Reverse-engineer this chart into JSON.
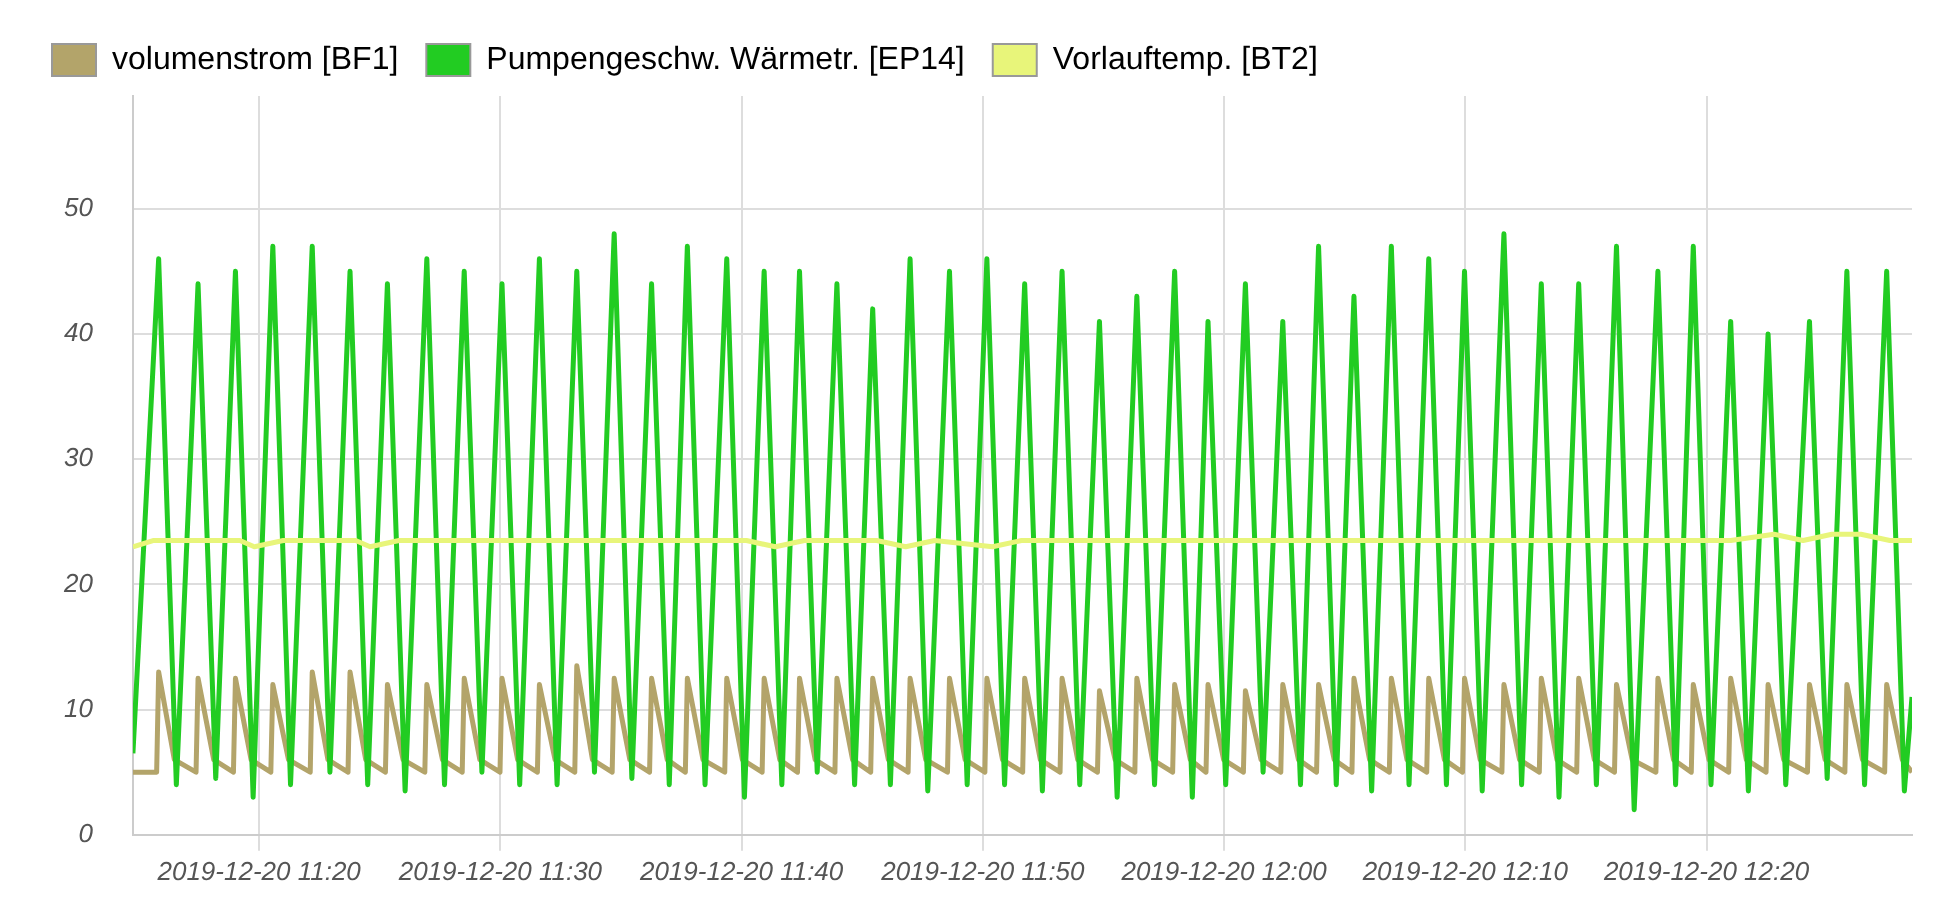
{
  "chart_data": {
    "type": "line",
    "xlim": [
      "2019-12-20T11:14:46",
      "2019-12-20T12:28:31"
    ],
    "xticks": [
      {
        "value": "2019-12-20T11:20",
        "label": "2019-12-20 11:20"
      },
      {
        "value": "2019-12-20T11:30",
        "label": "2019-12-20 11:30"
      },
      {
        "value": "2019-12-20T11:40",
        "label": "2019-12-20 11:40"
      },
      {
        "value": "2019-12-20T11:50",
        "label": "2019-12-20 11:50"
      },
      {
        "value": "2019-12-20T12:00",
        "label": "2019-12-20 12:00"
      },
      {
        "value": "2019-12-20T12:10",
        "label": "2019-12-20 12:10"
      },
      {
        "value": "2019-12-20T12:20",
        "label": "2019-12-20 12:20"
      }
    ],
    "ylim": [
      0,
      59
    ],
    "yticks": [
      0,
      10,
      20,
      30,
      40,
      50
    ],
    "grid": true,
    "legend": "top left",
    "marker": "none",
    "line_style": "solid",
    "series": [
      {
        "name": "volumenstrom [BF1]",
        "color": "#b3a46a",
        "x": [
          "2019-12-20T11:14:46",
          "2019-12-20T11:15:45",
          "2019-12-20T11:15:50",
          "2019-12-20T11:16:29",
          "2019-12-20T11:17:23",
          "2019-12-20T11:17:28",
          "2019-12-20T11:18:07",
          "2019-12-20T11:18:56",
          "2019-12-20T11:19:01",
          "2019-12-20T11:19:40",
          "2019-12-20T11:20:29",
          "2019-12-20T11:20:34",
          "2019-12-20T11:21:13",
          "2019-12-20T11:22:07",
          "2019-12-20T11:22:12",
          "2019-12-20T11:22:51",
          "2019-12-20T11:23:41",
          "2019-12-20T11:23:46",
          "2019-12-20T11:24:25",
          "2019-12-20T11:25:14",
          "2019-12-20T11:25:19",
          "2019-12-20T11:25:58",
          "2019-12-20T11:26:52",
          "2019-12-20T11:26:57",
          "2019-12-20T11:27:36",
          "2019-12-20T11:28:25",
          "2019-12-20T11:28:30",
          "2019-12-20T11:29:09",
          "2019-12-20T11:29:59",
          "2019-12-20T11:30:04",
          "2019-12-20T11:30:43",
          "2019-12-20T11:31:32",
          "2019-12-20T11:31:37",
          "2019-12-20T11:32:16",
          "2019-12-20T11:33:05",
          "2019-12-20T11:33:10",
          "2019-12-20T11:33:49",
          "2019-12-20T11:34:38",
          "2019-12-20T11:34:43",
          "2019-12-20T11:35:22",
          "2019-12-20T11:36:11",
          "2019-12-20T11:36:16",
          "2019-12-20T11:36:55",
          "2019-12-20T11:37:40",
          "2019-12-20T11:37:45",
          "2019-12-20T11:38:24",
          "2019-12-20T11:39:18",
          "2019-12-20T11:39:23",
          "2019-12-20T11:40:02",
          "2019-12-20T11:40:51",
          "2019-12-20T11:40:56",
          "2019-12-20T11:41:35",
          "2019-12-20T11:42:19",
          "2019-12-20T11:42:24",
          "2019-12-20T11:43:03",
          "2019-12-20T11:43:52",
          "2019-12-20T11:43:57",
          "2019-12-20T11:44:36",
          "2019-12-20T11:45:21",
          "2019-12-20T11:45:26",
          "2019-12-20T11:46:05",
          "2019-12-20T11:46:54",
          "2019-12-20T11:46:59",
          "2019-12-20T11:47:38",
          "2019-12-20T11:48:32",
          "2019-12-20T11:48:37",
          "2019-12-20T11:49:16",
          "2019-12-20T11:50:05",
          "2019-12-20T11:50:10",
          "2019-12-20T11:50:49",
          "2019-12-20T11:51:39",
          "2019-12-20T11:51:44",
          "2019-12-20T11:52:23",
          "2019-12-20T11:53:12",
          "2019-12-20T11:53:17",
          "2019-12-20T11:53:56",
          "2019-12-20T11:54:45",
          "2019-12-20T11:54:50",
          "2019-12-20T11:55:29",
          "2019-12-20T11:56:18",
          "2019-12-20T11:56:23",
          "2019-12-20T11:57:02",
          "2019-12-20T11:57:52",
          "2019-12-20T11:57:57",
          "2019-12-20T11:58:36",
          "2019-12-20T11:59:15",
          "2019-12-20T11:59:20",
          "2019-12-20T11:59:59",
          "2019-12-20T12:00:48",
          "2019-12-20T12:00:53",
          "2019-12-20T12:01:32",
          "2019-12-20T12:02:21",
          "2019-12-20T12:02:26",
          "2019-12-20T12:03:05",
          "2019-12-20T12:03:50",
          "2019-12-20T12:03:55",
          "2019-12-20T12:04:34",
          "2019-12-20T12:05:18",
          "2019-12-20T12:05:23",
          "2019-12-20T12:06:02",
          "2019-12-20T12:06:51",
          "2019-12-20T12:06:56",
          "2019-12-20T12:07:35",
          "2019-12-20T12:08:24",
          "2019-12-20T12:08:29",
          "2019-12-20T12:09:08",
          "2019-12-20T12:09:53",
          "2019-12-20T12:09:58",
          "2019-12-20T12:10:37",
          "2019-12-20T12:11:31",
          "2019-12-20T12:11:36",
          "2019-12-20T12:12:15",
          "2019-12-20T12:13:04",
          "2019-12-20T12:13:09",
          "2019-12-20T12:13:48",
          "2019-12-20T12:14:37",
          "2019-12-20T12:14:42",
          "2019-12-20T12:15:21",
          "2019-12-20T12:16:11",
          "2019-12-20T12:16:16",
          "2019-12-20T12:16:55",
          "2019-12-20T12:17:54",
          "2019-12-20T12:17:59",
          "2019-12-20T12:18:38",
          "2019-12-20T12:19:22",
          "2019-12-20T12:19:27",
          "2019-12-20T12:20:06",
          "2019-12-20T12:20:55",
          "2019-12-20T12:21:00",
          "2019-12-20T12:21:39",
          "2019-12-20T12:22:28",
          "2019-12-20T12:22:33",
          "2019-12-20T12:23:12",
          "2019-12-20T12:24:11",
          "2019-12-20T12:24:16",
          "2019-12-20T12:24:55",
          "2019-12-20T12:25:44",
          "2019-12-20T12:25:49",
          "2019-12-20T12:26:28",
          "2019-12-20T12:27:23",
          "2019-12-20T12:27:28",
          "2019-12-20T12:28:07",
          "2019-12-20T12:28:31"
        ],
        "values": [
          5,
          5,
          13,
          6,
          5,
          12.5,
          6,
          5,
          12.5,
          6,
          5,
          12,
          6,
          5,
          13,
          6,
          5,
          13,
          6,
          5,
          12,
          6,
          5,
          12,
          6,
          5,
          12.5,
          6,
          5,
          12.5,
          6,
          5,
          12,
          6,
          5,
          13.5,
          6,
          5,
          12.5,
          6,
          5,
          12.5,
          6,
          5,
          12.5,
          6,
          5,
          12.5,
          6,
          5,
          12.5,
          6,
          5,
          12.5,
          6,
          5,
          12.5,
          6,
          5,
          12.5,
          6,
          5,
          12.5,
          6,
          5,
          12.5,
          6,
          5,
          12.5,
          6,
          5,
          12.5,
          6,
          5,
          12.5,
          6,
          5,
          11.5,
          6,
          5,
          12.5,
          6,
          5,
          12,
          6,
          5,
          12,
          6,
          5,
          11.5,
          6,
          5,
          12,
          6,
          5,
          12,
          6,
          5,
          12.5,
          6,
          5,
          12.5,
          6,
          5,
          12.5,
          6,
          5,
          12.5,
          6,
          5,
          12,
          6,
          5,
          12.5,
          6,
          5,
          12.5,
          6,
          5,
          12,
          6,
          5,
          12.5,
          6,
          5,
          12,
          6,
          5,
          12.5,
          6,
          5,
          12,
          6,
          5,
          12,
          6,
          5,
          12,
          6,
          5,
          12,
          6,
          5
        ]
      },
      {
        "name": "Pumpengeschw. Wärmetr. [EP14]",
        "color": "#22cc22",
        "x": [
          "2019-12-20T11:14:46",
          "2019-12-20T11:15:50",
          "2019-12-20T11:16:34",
          "2019-12-20T11:17:28",
          "2019-12-20T11:18:12",
          "2019-12-20T11:19:01",
          "2019-12-20T11:19:45",
          "2019-12-20T11:20:34",
          "2019-12-20T11:21:18",
          "2019-12-20T11:22:12",
          "2019-12-20T11:22:56",
          "2019-12-20T11:23:46",
          "2019-12-20T11:24:30",
          "2019-12-20T11:25:19",
          "2019-12-20T11:26:03",
          "2019-12-20T11:26:57",
          "2019-12-20T11:27:41",
          "2019-12-20T11:28:30",
          "2019-12-20T11:29:14",
          "2019-12-20T11:30:04",
          "2019-12-20T11:30:48",
          "2019-12-20T11:31:37",
          "2019-12-20T11:32:21",
          "2019-12-20T11:33:10",
          "2019-12-20T11:33:54",
          "2019-12-20T11:34:43",
          "2019-12-20T11:35:27",
          "2019-12-20T11:36:16",
          "2019-12-20T11:37:00",
          "2019-12-20T11:37:45",
          "2019-12-20T11:38:29",
          "2019-12-20T11:39:23",
          "2019-12-20T11:40:07",
          "2019-12-20T11:40:56",
          "2019-12-20T11:41:40",
          "2019-12-20T11:42:24",
          "2019-12-20T11:43:08",
          "2019-12-20T11:43:57",
          "2019-12-20T11:44:41",
          "2019-12-20T11:45:26",
          "2019-12-20T11:46:10",
          "2019-12-20T11:46:59",
          "2019-12-20T11:47:43",
          "2019-12-20T11:48:37",
          "2019-12-20T11:49:21",
          "2019-12-20T11:50:10",
          "2019-12-20T11:50:54",
          "2019-12-20T11:51:44",
          "2019-12-20T11:52:28",
          "2019-12-20T11:53:17",
          "2019-12-20T11:54:01",
          "2019-12-20T11:54:50",
          "2019-12-20T11:55:34",
          "2019-12-20T11:56:23",
          "2019-12-20T11:57:07",
          "2019-12-20T11:57:57",
          "2019-12-20T11:58:41",
          "2019-12-20T11:59:20",
          "2019-12-20T12:00:04",
          "2019-12-20T12:00:53",
          "2019-12-20T12:01:37",
          "2019-12-20T12:02:26",
          "2019-12-20T12:03:10",
          "2019-12-20T12:03:55",
          "2019-12-20T12:04:39",
          "2019-12-20T12:05:23",
          "2019-12-20T12:06:07",
          "2019-12-20T12:06:56",
          "2019-12-20T12:07:40",
          "2019-12-20T12:08:29",
          "2019-12-20T12:09:13",
          "2019-12-20T12:09:58",
          "2019-12-20T12:10:42",
          "2019-12-20T12:11:36",
          "2019-12-20T12:12:20",
          "2019-12-20T12:13:09",
          "2019-12-20T12:13:53",
          "2019-12-20T12:14:42",
          "2019-12-20T12:15:26",
          "2019-12-20T12:16:16",
          "2019-12-20T12:17:00",
          "2019-12-20T12:17:59",
          "2019-12-20T12:18:43",
          "2019-12-20T12:19:27",
          "2019-12-20T12:20:11",
          "2019-12-20T12:21:00",
          "2019-12-20T12:21:44",
          "2019-12-20T12:22:33",
          "2019-12-20T12:23:17",
          "2019-12-20T12:24:16",
          "2019-12-20T12:25:00",
          "2019-12-20T12:25:49",
          "2019-12-20T12:26:33",
          "2019-12-20T12:27:28",
          "2019-12-20T12:28:12",
          "2019-12-20T12:28:31"
        ],
        "values": [
          6.5,
          46,
          4,
          44,
          4.5,
          45,
          3,
          47,
          4,
          47,
          5,
          45,
          4,
          44,
          3.5,
          46,
          4,
          45,
          5,
          44,
          4,
          46,
          4,
          45,
          5,
          48,
          4.5,
          44,
          4,
          47,
          4,
          46,
          3,
          45,
          4,
          45,
          5,
          44,
          4,
          42,
          4,
          46,
          3.5,
          45,
          4,
          46,
          4,
          44,
          3.5,
          45,
          4,
          41,
          3,
          43,
          4,
          45,
          3,
          41,
          4,
          44,
          5,
          41,
          4,
          47,
          4,
          43,
          3.5,
          47,
          4,
          46,
          4,
          45,
          3.5,
          48,
          4,
          44,
          3,
          44,
          4,
          47,
          2,
          45,
          4,
          47,
          4,
          41,
          3.5,
          40,
          4,
          41,
          4.5,
          45,
          4,
          45,
          3.5,
          11
        ]
      },
      {
        "name": "Vorlauftemp. [BT2]",
        "color": "#e8f57a",
        "x": [
          "2019-12-20T11:14:46",
          "2019-12-20T11:15:36",
          "2019-12-20T11:16:48",
          "2019-12-20T11:18:00",
          "2019-12-20T11:19:12",
          "2019-12-20T11:19:48",
          "2019-12-20T11:21:00",
          "2019-12-20T11:22:48",
          "2019-12-20T11:24:00",
          "2019-12-20T11:24:36",
          "2019-12-20T11:25:48",
          "2019-12-20T11:28:12",
          "2019-12-20T11:31:12",
          "2019-12-20T11:34:12",
          "2019-12-20T11:37:12",
          "2019-12-20T11:40:12",
          "2019-12-20T11:41:24",
          "2019-12-20T11:42:36",
          "2019-12-20T11:45:36",
          "2019-12-20T11:46:48",
          "2019-12-20T11:48:00",
          "2019-12-20T11:50:24",
          "2019-12-20T11:51:36",
          "2019-12-20T11:54:00",
          "2019-12-20T11:57:00",
          "2019-12-20T12:00:00",
          "2019-12-20T12:03:00",
          "2019-12-20T12:06:00",
          "2019-12-20T12:09:00",
          "2019-12-20T12:12:00",
          "2019-12-20T12:15:00",
          "2019-12-20T12:18:00",
          "2019-12-20T12:21:00",
          "2019-12-20T12:22:48",
          "2019-12-20T12:24:00",
          "2019-12-20T12:25:12",
          "2019-12-20T12:26:24",
          "2019-12-20T12:27:36",
          "2019-12-20T12:28:31"
        ],
        "values": [
          23,
          23.5,
          23.5,
          23.5,
          23.5,
          23,
          23.5,
          23.5,
          23.5,
          23,
          23.5,
          23.5,
          23.5,
          23.5,
          23.5,
          23.5,
          23,
          23.5,
          23.5,
          23,
          23.5,
          23,
          23.5,
          23.5,
          23.5,
          23.5,
          23.5,
          23.5,
          23.5,
          23.5,
          23.5,
          23.5,
          23.5,
          24,
          23.5,
          24,
          24,
          23.5,
          23.5
        ]
      }
    ]
  }
}
